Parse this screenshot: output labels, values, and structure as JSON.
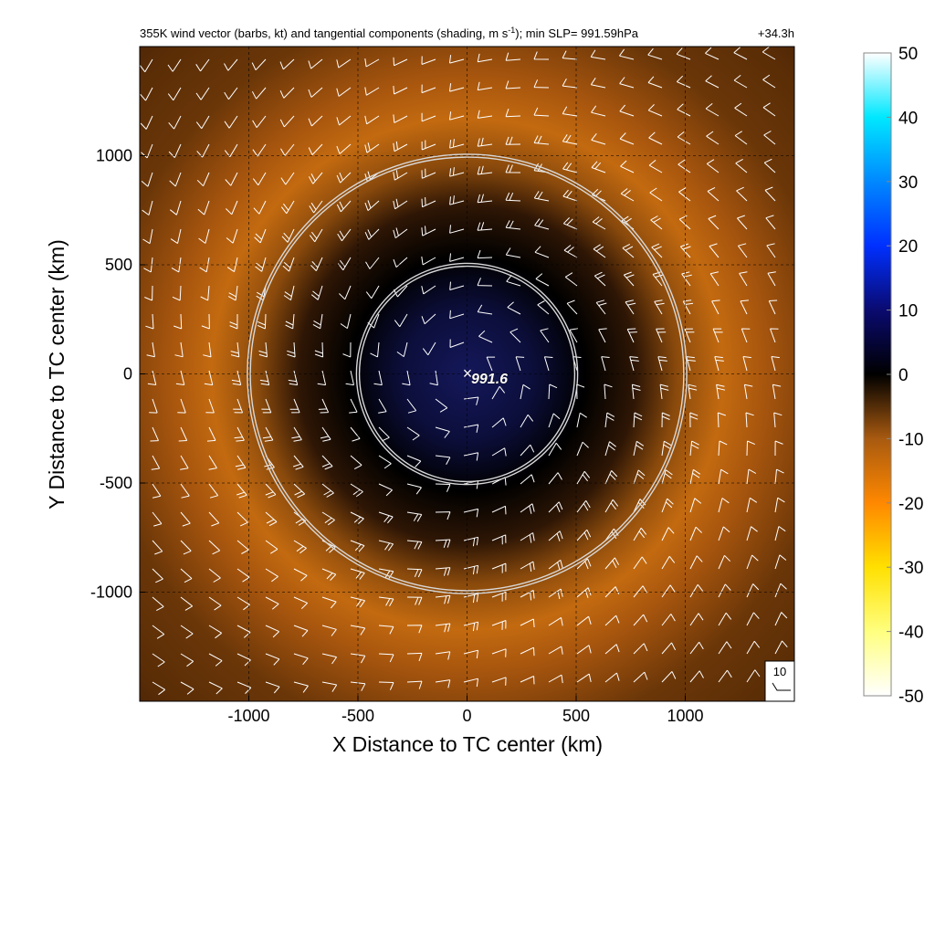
{
  "chart_data": {
    "type": "heatmap",
    "title": "355K wind vector (barbs, kt) and tangential components (shading, m s",
    "title_superscript": "-1",
    "title_suffix": "); min SLP= 991.59hPa",
    "time_label": "+34.3h",
    "xlabel": "X Distance to TC center (km)",
    "ylabel": "Y Distance to TC center (km)",
    "xlim": [
      -1500,
      1500
    ],
    "ylim": [
      -1500,
      1500
    ],
    "xticks": [
      {
        "value": -1000,
        "label": "-1000"
      },
      {
        "value": -500,
        "label": "-500"
      },
      {
        "value": 0,
        "label": "0"
      },
      {
        "value": 500,
        "label": "500"
      },
      {
        "value": 1000,
        "label": "1000"
      }
    ],
    "yticks": [
      {
        "value": 1000,
        "label": "1000"
      },
      {
        "value": 500,
        "label": "500"
      },
      {
        "value": 0,
        "label": "0"
      },
      {
        "value": -500,
        "label": "-500"
      },
      {
        "value": -1000,
        "label": "-1000"
      }
    ],
    "grid": true,
    "colorbar": {
      "min": -50,
      "max": 50,
      "ticks": [
        {
          "value": 50,
          "label": "50"
        },
        {
          "value": 40,
          "label": "40"
        },
        {
          "value": 30,
          "label": "30"
        },
        {
          "value": 20,
          "label": "20"
        },
        {
          "value": 10,
          "label": "10"
        },
        {
          "value": 0,
          "label": "0"
        },
        {
          "value": -10,
          "label": "-10"
        },
        {
          "value": -20,
          "label": "-20"
        },
        {
          "value": -30,
          "label": "-30"
        },
        {
          "value": -40,
          "label": "-40"
        },
        {
          "value": -50,
          "label": "-50"
        }
      ],
      "stops": [
        {
          "value": -50,
          "color": "#ffffff"
        },
        {
          "value": -40,
          "color": "#ffff80"
        },
        {
          "value": -30,
          "color": "#ffe000"
        },
        {
          "value": -20,
          "color": "#ff8800"
        },
        {
          "value": -10,
          "color": "#a85a10"
        },
        {
          "value": 0,
          "color": "#000000"
        },
        {
          "value": 10,
          "color": "#0a0a70"
        },
        {
          "value": 20,
          "color": "#0030ff"
        },
        {
          "value": 30,
          "color": "#0088ff"
        },
        {
          "value": 40,
          "color": "#00e8ff"
        },
        {
          "value": 50,
          "color": "#ffffff"
        }
      ]
    },
    "range_rings_km": [
      500,
      1000
    ],
    "center_marker": {
      "x": 0,
      "y": 0,
      "symbol": "×",
      "label": "991.6"
    },
    "reference_barb": {
      "label": "10",
      "speed_kt": 10
    }
  }
}
